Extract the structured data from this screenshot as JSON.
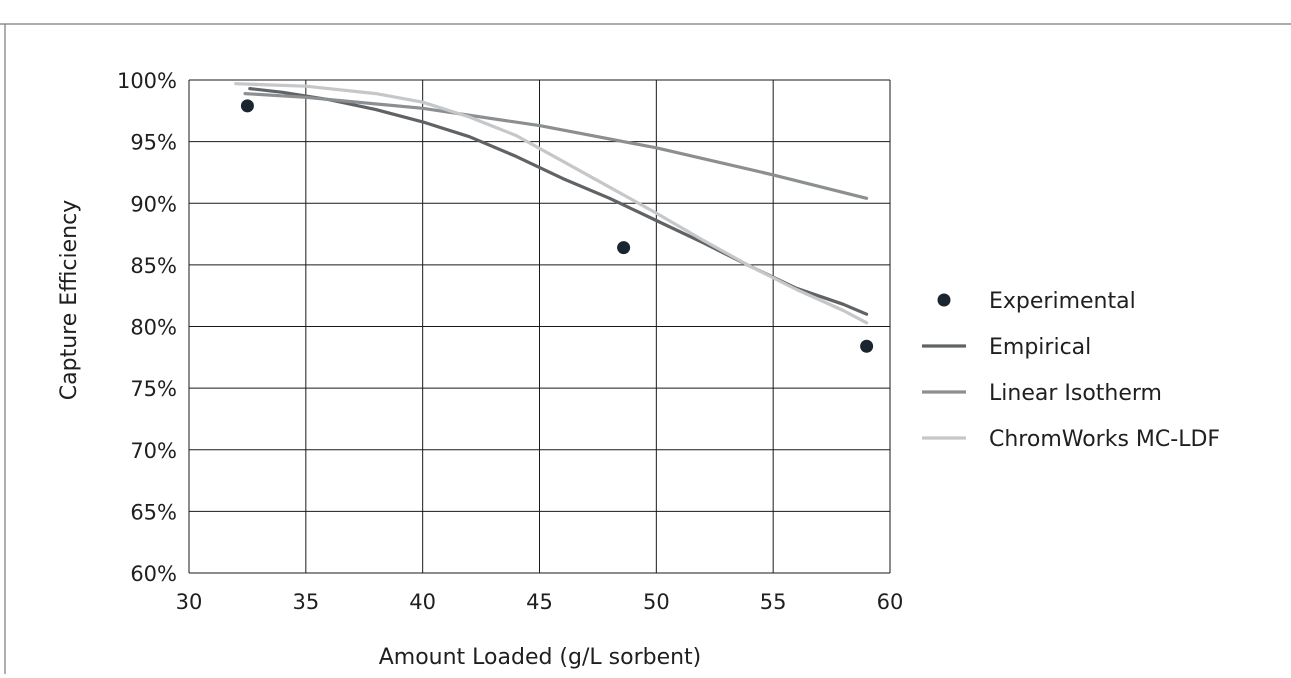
{
  "chart_data": {
    "type": "line",
    "title": "",
    "xlabel": "Amount Loaded (g/L sorbent)",
    "ylabel": "Capture Efficiency",
    "xlim": [
      30,
      60
    ],
    "ylim": [
      60,
      100
    ],
    "x_ticks": [
      30,
      35,
      40,
      45,
      50,
      55,
      60
    ],
    "x_tick_labels": [
      "30",
      "35",
      "40",
      "45",
      "50",
      "55",
      "60"
    ],
    "y_ticks": [
      60,
      65,
      70,
      75,
      80,
      85,
      90,
      95,
      100
    ],
    "y_tick_labels": [
      "60%",
      "65%",
      "70%",
      "75%",
      "80%",
      "85%",
      "90%",
      "95%",
      "100%"
    ],
    "grid": true,
    "legend_position": "right",
    "series": [
      {
        "name": "Experimental",
        "kind": "scatter",
        "color": "#1b2530",
        "x": [
          32.5,
          48.6,
          59.0
        ],
        "y": [
          97.9,
          86.4,
          78.4
        ]
      },
      {
        "name": "Empirical",
        "kind": "line",
        "color": "#5f6366",
        "x": [
          32.6,
          34,
          36,
          38,
          40,
          42,
          44,
          46,
          48,
          50,
          52,
          54,
          56,
          58,
          59
        ],
        "y": [
          99.3,
          99.0,
          98.4,
          97.6,
          96.6,
          95.4,
          93.8,
          92.0,
          90.4,
          88.6,
          86.8,
          84.9,
          83.1,
          81.8,
          81.0
        ]
      },
      {
        "name": "Linear Isotherm",
        "kind": "line",
        "color": "#8c8f91",
        "x": [
          32.4,
          35,
          40,
          45,
          50,
          55,
          59
        ],
        "y": [
          98.9,
          98.6,
          97.7,
          96.3,
          94.5,
          92.3,
          90.4
        ]
      },
      {
        "name": "ChromWorks MC-LDF",
        "kind": "line",
        "color": "#c5c7c8",
        "x": [
          32.0,
          35,
          38,
          40,
          42,
          44,
          46,
          48,
          50,
          52,
          54,
          56,
          58,
          59
        ],
        "y": [
          99.7,
          99.5,
          98.9,
          98.2,
          97.0,
          95.5,
          93.4,
          91.3,
          89.2,
          87.0,
          84.9,
          83.0,
          81.3,
          80.3
        ]
      }
    ]
  },
  "colors": {
    "grid": "#1a1a1a",
    "frame": "#6b6b6b",
    "text": "#1f1f1f"
  }
}
